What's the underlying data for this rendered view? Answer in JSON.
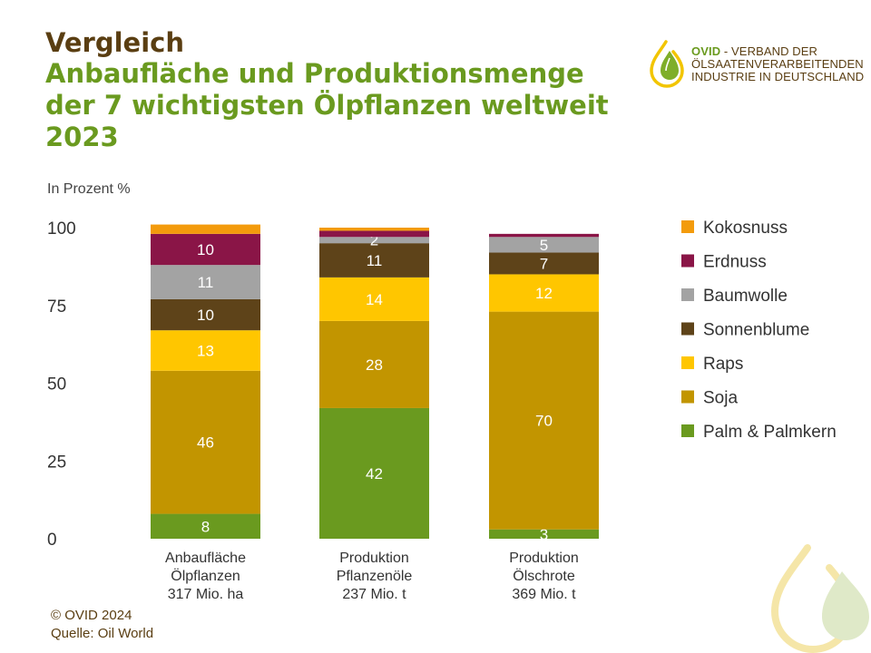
{
  "header": {
    "title_line1": "Vergleich",
    "title_line2": "Anbaufläche und Produktionsmenge\nder 7 wichtigsten Ölpflanzen weltweit\n2023"
  },
  "logo": {
    "brand": "OVID",
    "text": " - VERBAND DER\nÖLSAATENVERARBEITENDEN\nINDUSTRIE IN DEUTSCHLAND"
  },
  "footer": {
    "copyright": "© OVID 2024",
    "source": "Quelle: Oil World"
  },
  "colors": {
    "title_brown": "#5a3e12",
    "title_green": "#6a9a1f",
    "label_white_on_dark": "#ffffff",
    "label_on_light": "#ffffff"
  },
  "chart_data": {
    "type": "bar",
    "stacked": true,
    "ylabel": "In Prozent %",
    "ylim": [
      0,
      100
    ],
    "yticks": [
      0,
      25,
      50,
      75,
      100
    ],
    "grid": false,
    "legend_position": "right",
    "categories": [
      [
        "Anbaufläche",
        "Ölpflanzen",
        "317 Mio. ha"
      ],
      [
        "Produktion",
        "Pflanzenöle",
        "237 Mio. t"
      ],
      [
        "Produktion",
        "Ölschrote",
        "369 Mio. t"
      ]
    ],
    "series": [
      {
        "name": "Palm & Palmkern",
        "color": "#6a9a1f",
        "values": [
          8,
          42,
          3
        ],
        "labels": [
          "8",
          "42",
          "3"
        ]
      },
      {
        "name": "Soja",
        "color": "#c29500",
        "values": [
          46,
          28,
          70
        ],
        "labels": [
          "46",
          "28",
          "70"
        ]
      },
      {
        "name": "Raps",
        "color": "#ffc600",
        "values": [
          13,
          14,
          12
        ],
        "labels": [
          "13",
          "14",
          "12"
        ]
      },
      {
        "name": "Sonnenblume",
        "color": "#5e4319",
        "values": [
          10,
          11,
          7
        ],
        "labels": [
          "10",
          "11",
          "7"
        ]
      },
      {
        "name": "Baumwolle",
        "color": "#a3a3a3",
        "values": [
          11,
          2,
          5
        ],
        "labels": [
          "11",
          "2",
          "5"
        ]
      },
      {
        "name": "Erdnuss",
        "color": "#8a1547",
        "values": [
          10,
          2,
          1
        ],
        "labels": [
          "10",
          "",
          ""
        ]
      },
      {
        "name": "Kokosnuss",
        "color": "#f39b0c",
        "values": [
          3,
          1,
          0
        ],
        "labels": [
          "",
          "",
          ""
        ]
      }
    ]
  }
}
